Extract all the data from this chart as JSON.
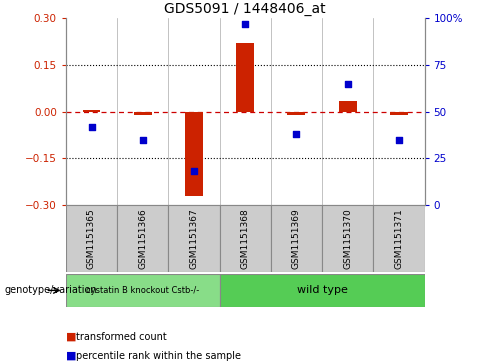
{
  "title": "GDS5091 / 1448406_at",
  "samples": [
    "GSM1151365",
    "GSM1151366",
    "GSM1151367",
    "GSM1151368",
    "GSM1151369",
    "GSM1151370",
    "GSM1151371"
  ],
  "transformed_count": [
    0.005,
    -0.012,
    -0.27,
    0.22,
    -0.012,
    0.033,
    -0.01
  ],
  "percentile_rank": [
    42,
    35,
    18,
    97,
    38,
    65,
    35
  ],
  "ylim_left": [
    -0.3,
    0.3
  ],
  "ylim_right": [
    0,
    100
  ],
  "yticks_left": [
    -0.3,
    -0.15,
    0.0,
    0.15,
    0.3
  ],
  "yticks_right": [
    0,
    25,
    50,
    75,
    100
  ],
  "yticklabels_right": [
    "0",
    "25",
    "50",
    "75",
    "100%"
  ],
  "bar_color": "#cc2200",
  "scatter_color": "#0000cc",
  "hline_color": "#cc0000",
  "dotline_color": "#000000",
  "group1_samples": [
    0,
    1,
    2
  ],
  "group2_samples": [
    3,
    4,
    5,
    6
  ],
  "group1_label": "cystatin B knockout Cstb-/-",
  "group2_label": "wild type",
  "group1_color": "#88dd88",
  "group2_color": "#55cc55",
  "genotype_label": "genotype/variation",
  "legend1_label": "transformed count",
  "legend2_label": "percentile rank within the sample",
  "bar_width": 0.35,
  "tick_fontsize": 7.5,
  "title_fontsize": 10,
  "box_color": "#cccccc",
  "spine_color": "#888888"
}
